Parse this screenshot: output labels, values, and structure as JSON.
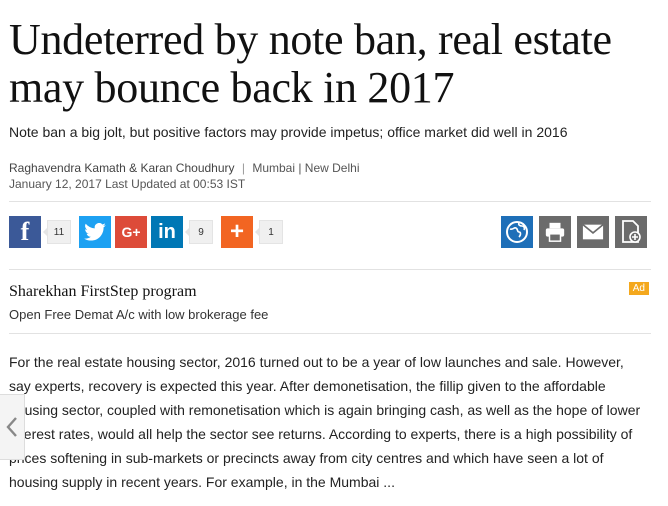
{
  "article": {
    "headline": "Undeterred by note ban, real estate may bounce back in 2017",
    "subtitle": "Note ban a big jolt, but positive factors may provide impetus; office market did well in 2016",
    "author1": "Raghavendra Kamath",
    "amp": "&",
    "author2": "Karan Choudhury",
    "separator": "|",
    "location": "Mumbai | New Delhi",
    "date": "January 12, 2017 Last Updated at 00:53 IST",
    "body": "For the real estate housing sector, 2016 turned out to be a year of low launches and sale. However, say experts, recovery is expected this year.  After demonetisation, the fillip given to the affordable housing sector, coupled with remonetisation which is again bringing cash, as well as the hope of lower interest rates, would all help the sector see returns. According to experts, there is a high possibility of prices softening in sub-markets or precincts away from city centres and which have seen a lot of housing supply in recent years. For example, in the Mumbai ..."
  },
  "share": {
    "facebook_count": "11",
    "linkedin_count": "9",
    "more_count": "1",
    "google_label": "G+",
    "plus_label": "+"
  },
  "ad": {
    "title": "Sharekhan FirstStep program",
    "subtitle": "Open Free Demat A/c with low brokerage fee",
    "badge": "Ad"
  },
  "colors": {
    "facebook": "#3b5998",
    "twitter": "#1da1f2",
    "google": "#dd4b39",
    "linkedin": "#0077b5",
    "more": "#f26522",
    "ad_badge": "#f4a81d"
  },
  "icons": [
    "facebook-icon",
    "twitter-icon",
    "google-plus-icon",
    "linkedin-icon",
    "plus-icon",
    "globe-icon",
    "print-icon",
    "email-icon",
    "document-icon",
    "chevron-left-icon"
  ]
}
